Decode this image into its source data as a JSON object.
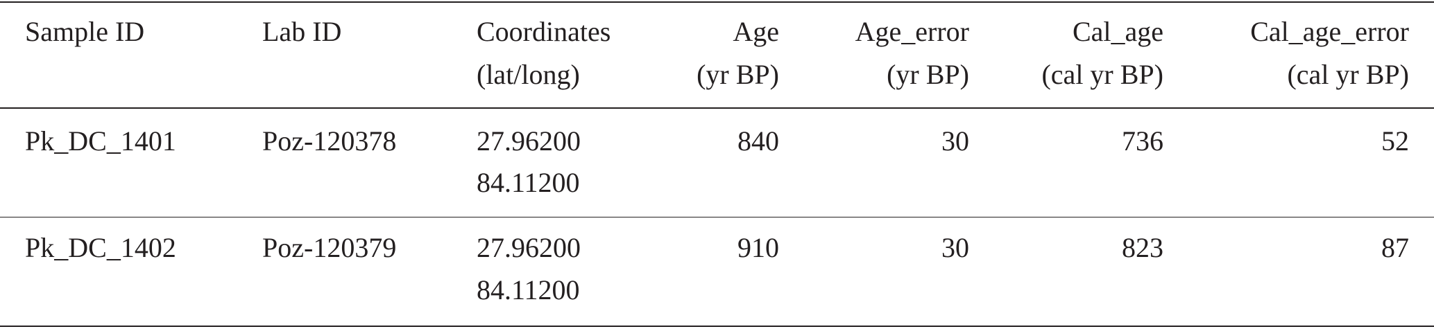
{
  "table": {
    "columns": [
      "Sample ID",
      "Lab ID",
      [
        "Coordinates",
        "(lat/long)"
      ],
      [
        "Age",
        "(yr BP)"
      ],
      [
        "Age_error",
        "(yr BP)"
      ],
      [
        "Cal_age",
        "(cal yr BP)"
      ],
      [
        "Cal_age_error",
        "(cal yr BP)"
      ]
    ],
    "rows": [
      [
        "Pk_DC_1401",
        "Poz-120378",
        [
          "27.96200",
          "84.11200"
        ],
        840,
        30,
        736,
        52
      ],
      [
        "Pk_DC_1402",
        "Poz-120379",
        [
          "27.96200",
          "84.11200"
        ],
        910,
        30,
        823,
        87
      ]
    ]
  }
}
